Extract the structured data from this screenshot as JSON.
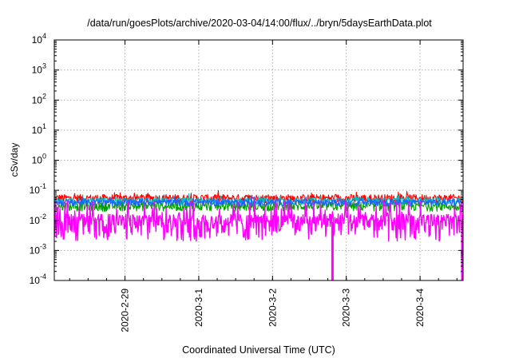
{
  "chart_data": {
    "type": "line",
    "title": "/data/run/goesPlots/archive/2020-03-04/14:00/flux/../bryn/5daysEarthData.plot",
    "xlabel": "Coordinated Universal Time (UTC)",
    "ylabel": "cSv/day",
    "y_scale": "log",
    "ylim": [
      0.0001,
      10000
    ],
    "y_ticks": [
      {
        "value": 0.0001,
        "base": "10",
        "exp": "-4"
      },
      {
        "value": 0.001,
        "base": "10",
        "exp": "-3"
      },
      {
        "value": 0.01,
        "base": "10",
        "exp": "-2"
      },
      {
        "value": 0.1,
        "base": "10",
        "exp": "-1"
      },
      {
        "value": 1,
        "base": "10",
        "exp": "0"
      },
      {
        "value": 10,
        "base": "10",
        "exp": "1"
      },
      {
        "value": 100,
        "base": "10",
        "exp": "2"
      },
      {
        "value": 1000,
        "base": "10",
        "exp": "3"
      },
      {
        "value": 10000,
        "base": "10",
        "exp": "4"
      }
    ],
    "xlim": [
      "2020-02-28T01:00",
      "2020-03-04T14:00"
    ],
    "x_ticks": [
      {
        "value": "2020-02-29T00:00",
        "label": "2020-2-29"
      },
      {
        "value": "2020-03-01T00:00",
        "label": "2020-3-1"
      },
      {
        "value": "2020-03-02T00:00",
        "label": "2020-3-2"
      },
      {
        "value": "2020-03-03T00:00",
        "label": "2020-3-3"
      },
      {
        "value": "2020-03-04T00:00",
        "label": "2020-3-4"
      }
    ],
    "grid": true,
    "series": [
      {
        "color": "#ff0000",
        "base": 0.055,
        "spread": 0.018
      },
      {
        "color": "#00a000",
        "base": 0.03,
        "spread": 0.01
      },
      {
        "color": "#00c0c0",
        "base": 0.045,
        "spread": 0.012
      },
      {
        "color": "#2060ff",
        "base": 0.04,
        "spread": 0.01
      },
      {
        "color": "#ff00ff",
        "base": 0.009,
        "spread": 0.007
      }
    ],
    "dropouts": [
      {
        "series": 4,
        "time": "2020-03-02T19:30",
        "value": 0.0001
      },
      {
        "series": 4,
        "time": "2020-03-04T14:00",
        "value": 0.0001
      }
    ]
  }
}
